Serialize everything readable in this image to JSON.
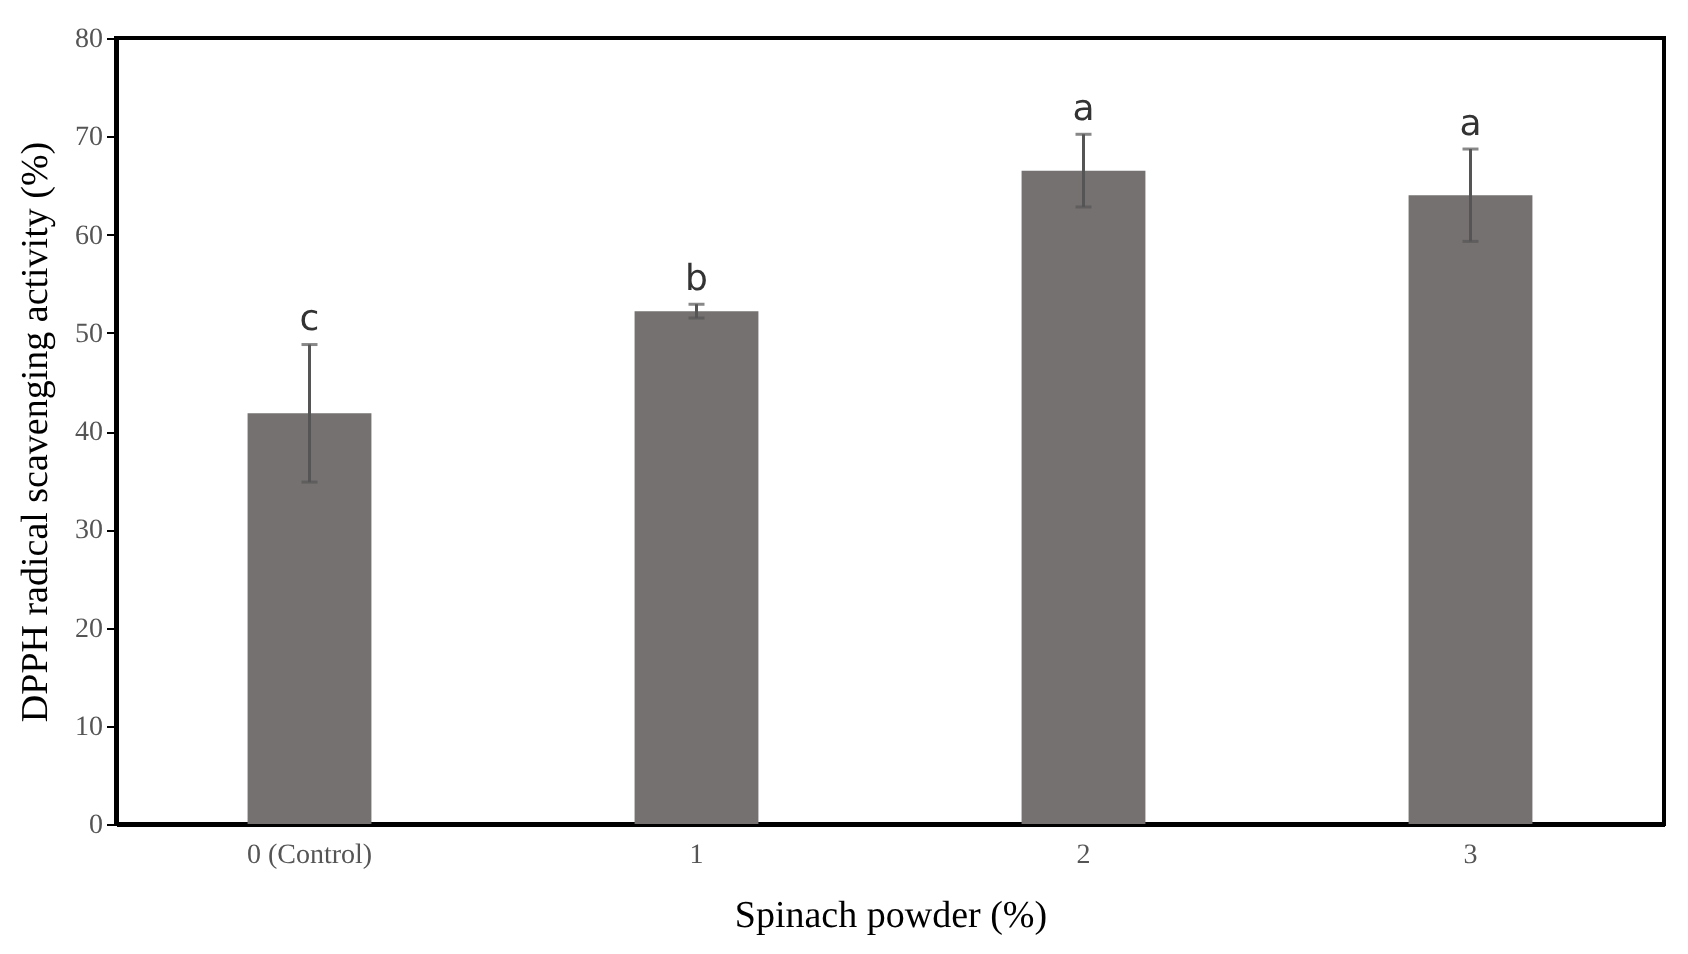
{
  "chart_data": {
    "type": "bar",
    "xlabel": "Spinach powder (%)",
    "ylabel": "DPPH radical scavenging activity (%)",
    "categories": [
      "0 (Control)",
      "1",
      "2",
      "3"
    ],
    "values": [
      41.8,
      52.2,
      66.5,
      64.0
    ],
    "errors": [
      7,
      0.7,
      3.7,
      4.7
    ],
    "color": "#757170",
    "ylim": [
      0,
      80
    ],
    "yticks": [
      0,
      10,
      20,
      30,
      40,
      50,
      60,
      70,
      80
    ],
    "grid": false,
    "annotations": [
      {
        "text": "c",
        "x": "0 (Control)",
        "y": 48.9
      },
      {
        "text": "b",
        "x": "1",
        "y": 52.9
      },
      {
        "text": "a",
        "x": "2",
        "y": 70.2
      },
      {
        "text": "a",
        "x": "3",
        "y": 68.7
      }
    ]
  }
}
